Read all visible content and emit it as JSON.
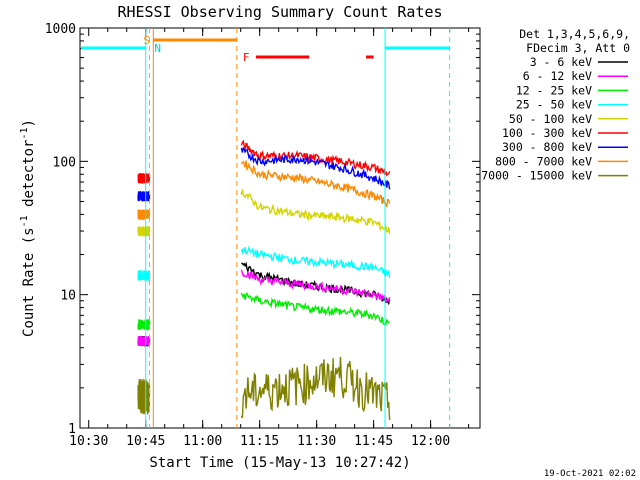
{
  "chart_data": {
    "type": "line",
    "title": "RHESSI Observing Summary Count Rates",
    "xlabel": "Start Time (15-May-13 10:27:42)",
    "ylabel_main": "Count Rate (s",
    "ylabel_sup1": "-1",
    "ylabel_mid": " detector",
    "ylabel_sup2": "-1",
    "ylabel_end": ")",
    "yscale": "log",
    "ylim": [
      1,
      1000
    ],
    "xlim_minutes": [
      "10:27:42",
      "12:13:00"
    ],
    "x_ticks": [
      "10:30",
      "10:45",
      "11:00",
      "11:15",
      "11:30",
      "11:45",
      "12:00"
    ],
    "y_ticks": [
      "1",
      "10",
      "100",
      "1000"
    ],
    "legend_header": [
      "Det 1,3,4,5,6,9,",
      "FDecim 3, Att 0"
    ],
    "series": [
      {
        "name": "3 - 6 keV",
        "color": "#000000"
      },
      {
        "name": "6 - 12 keV",
        "color": "#ff00ff"
      },
      {
        "name": "12 - 25 keV",
        "color": "#00ee00"
      },
      {
        "name": "25 - 50 keV",
        "color": "#00ffff"
      },
      {
        "name": "50 - 100 keV",
        "color": "#d4d400"
      },
      {
        "name": "100 - 300 keV",
        "color": "#ff0000"
      },
      {
        "name": "300 - 800 keV",
        "color": "#0000ff"
      },
      {
        "name": "800 - 7000 keV",
        "color": "#ff8800"
      },
      {
        "name": "7000 - 15000 keV",
        "color": "#808000"
      }
    ],
    "segments": [
      {
        "start": "10:43",
        "end": "10:46",
        "levels": {
          "3 - 6 keV": 4.5,
          "6 - 12 keV": 4.5,
          "12 - 25 keV": 6,
          "25 - 50 keV": 14,
          "50 - 100 keV": 30,
          "100 - 300 keV": 75,
          "300 - 800 keV": 55,
          "800 - 7000 keV": 40,
          "7000 - 15000 keV": 1.8
        }
      },
      {
        "start": "11:10",
        "end": "11:49",
        "curves": {
          "100 - 300 keV": [
            [
              11.17,
              135
            ],
            [
              11.25,
              110
            ],
            [
              11.42,
              110
            ],
            [
              11.6,
              100
            ],
            [
              11.75,
              90
            ],
            [
              11.82,
              80
            ]
          ],
          "300 - 800 keV": [
            [
              11.17,
              120
            ],
            [
              11.25,
              100
            ],
            [
              11.42,
              105
            ],
            [
              11.6,
              90
            ],
            [
              11.75,
              75
            ],
            [
              11.82,
              65
            ]
          ],
          "800 - 7000 keV": [
            [
              11.17,
              100
            ],
            [
              11.25,
              80
            ],
            [
              11.42,
              75
            ],
            [
              11.6,
              65
            ],
            [
              11.75,
              55
            ],
            [
              11.82,
              48
            ]
          ],
          "50 - 100 keV": [
            [
              11.17,
              60
            ],
            [
              11.25,
              45
            ],
            [
              11.42,
              40
            ],
            [
              11.6,
              38
            ],
            [
              11.75,
              35
            ],
            [
              11.82,
              30
            ]
          ],
          "25 - 50 keV": [
            [
              11.17,
              22
            ],
            [
              11.25,
              20
            ],
            [
              11.42,
              18
            ],
            [
              11.6,
              17
            ],
            [
              11.75,
              16
            ],
            [
              11.82,
              14
            ]
          ],
          "3 - 6 keV": [
            [
              11.17,
              17
            ],
            [
              11.25,
              14
            ],
            [
              11.42,
              12
            ],
            [
              11.6,
              11
            ],
            [
              11.75,
              10
            ],
            [
              11.82,
              9
            ]
          ],
          "6 - 12 keV": [
            [
              11.17,
              15
            ],
            [
              11.25,
              13
            ],
            [
              11.42,
              12
            ],
            [
              11.6,
              11
            ],
            [
              11.75,
              10
            ],
            [
              11.82,
              9
            ]
          ],
          "12 - 25 keV": [
            [
              11.17,
              10
            ],
            [
              11.25,
              9
            ],
            [
              11.42,
              8
            ],
            [
              11.6,
              7.5
            ],
            [
              11.75,
              7
            ],
            [
              11.82,
              6
            ]
          ],
          "7000 - 15000 keV": [
            [
              11.17,
              1.8
            ],
            [
              11.42,
              2.2
            ],
            [
              11.6,
              2.6
            ],
            [
              11.75,
              1.8
            ],
            [
              11.82,
              1.6
            ]
          ]
        }
      }
    ],
    "flags": {
      "saa_label": "S",
      "night_label": "N",
      "flare_label": "F",
      "night_bars": [
        [
          "10:28",
          "10:45"
        ],
        [
          "11:48",
          "12:05"
        ]
      ],
      "saa_bar": [
        "10:47",
        "11:09"
      ],
      "flare_bars": [
        [
          "11:14",
          "11:28"
        ],
        [
          "11:43",
          "11:45"
        ]
      ]
    },
    "footer_timestamp": "19-Oct-2021 02:02"
  }
}
